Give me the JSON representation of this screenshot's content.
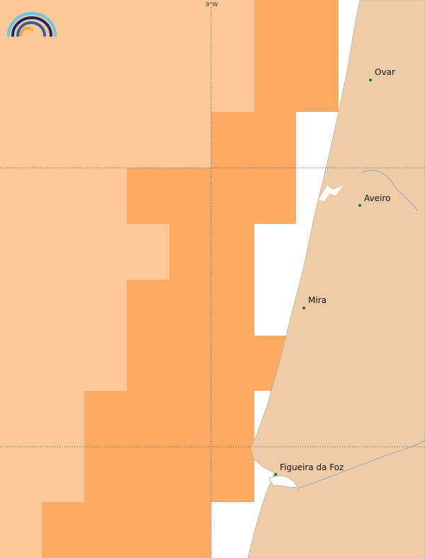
{
  "graticule": {
    "meridian": "9°W"
  },
  "places": [
    {
      "name": "Ovar"
    },
    {
      "name": "Aveiro"
    },
    {
      "name": "Mira"
    },
    {
      "name": "Figueira da Foz"
    }
  ]
}
